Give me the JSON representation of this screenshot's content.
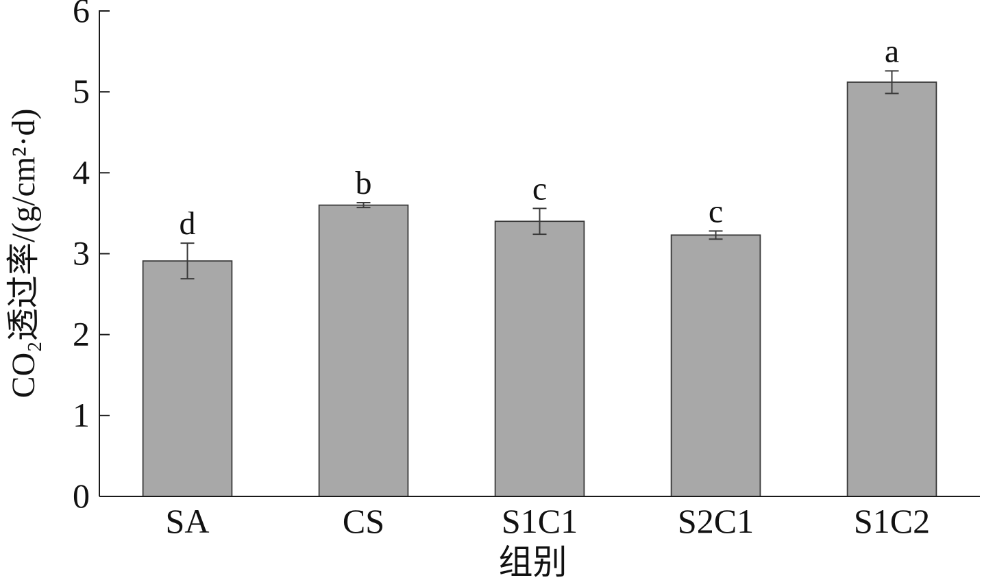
{
  "chart_data": {
    "type": "bar",
    "categories": [
      "SA",
      "CS",
      "S1C1",
      "S2C1",
      "S1C2"
    ],
    "values": [
      2.91,
      3.6,
      3.4,
      3.23,
      5.12
    ],
    "errors": [
      0.22,
      0.03,
      0.16,
      0.05,
      0.14
    ],
    "significance_letters": [
      "d",
      "b",
      "c",
      "c",
      "a"
    ],
    "xlabel": "组别",
    "ylabel": "CO₂透过率/(g/cm²·d)",
    "ylim": [
      0,
      6
    ],
    "yticks": [
      0,
      1,
      2,
      3,
      4,
      5,
      6
    ],
    "grid": false,
    "colors": {
      "bar_fill": "#a8a8a8",
      "bar_edge": "#3a3a3a",
      "error_bar": "#3a3a3a",
      "axis": "#1a1a1a"
    }
  }
}
